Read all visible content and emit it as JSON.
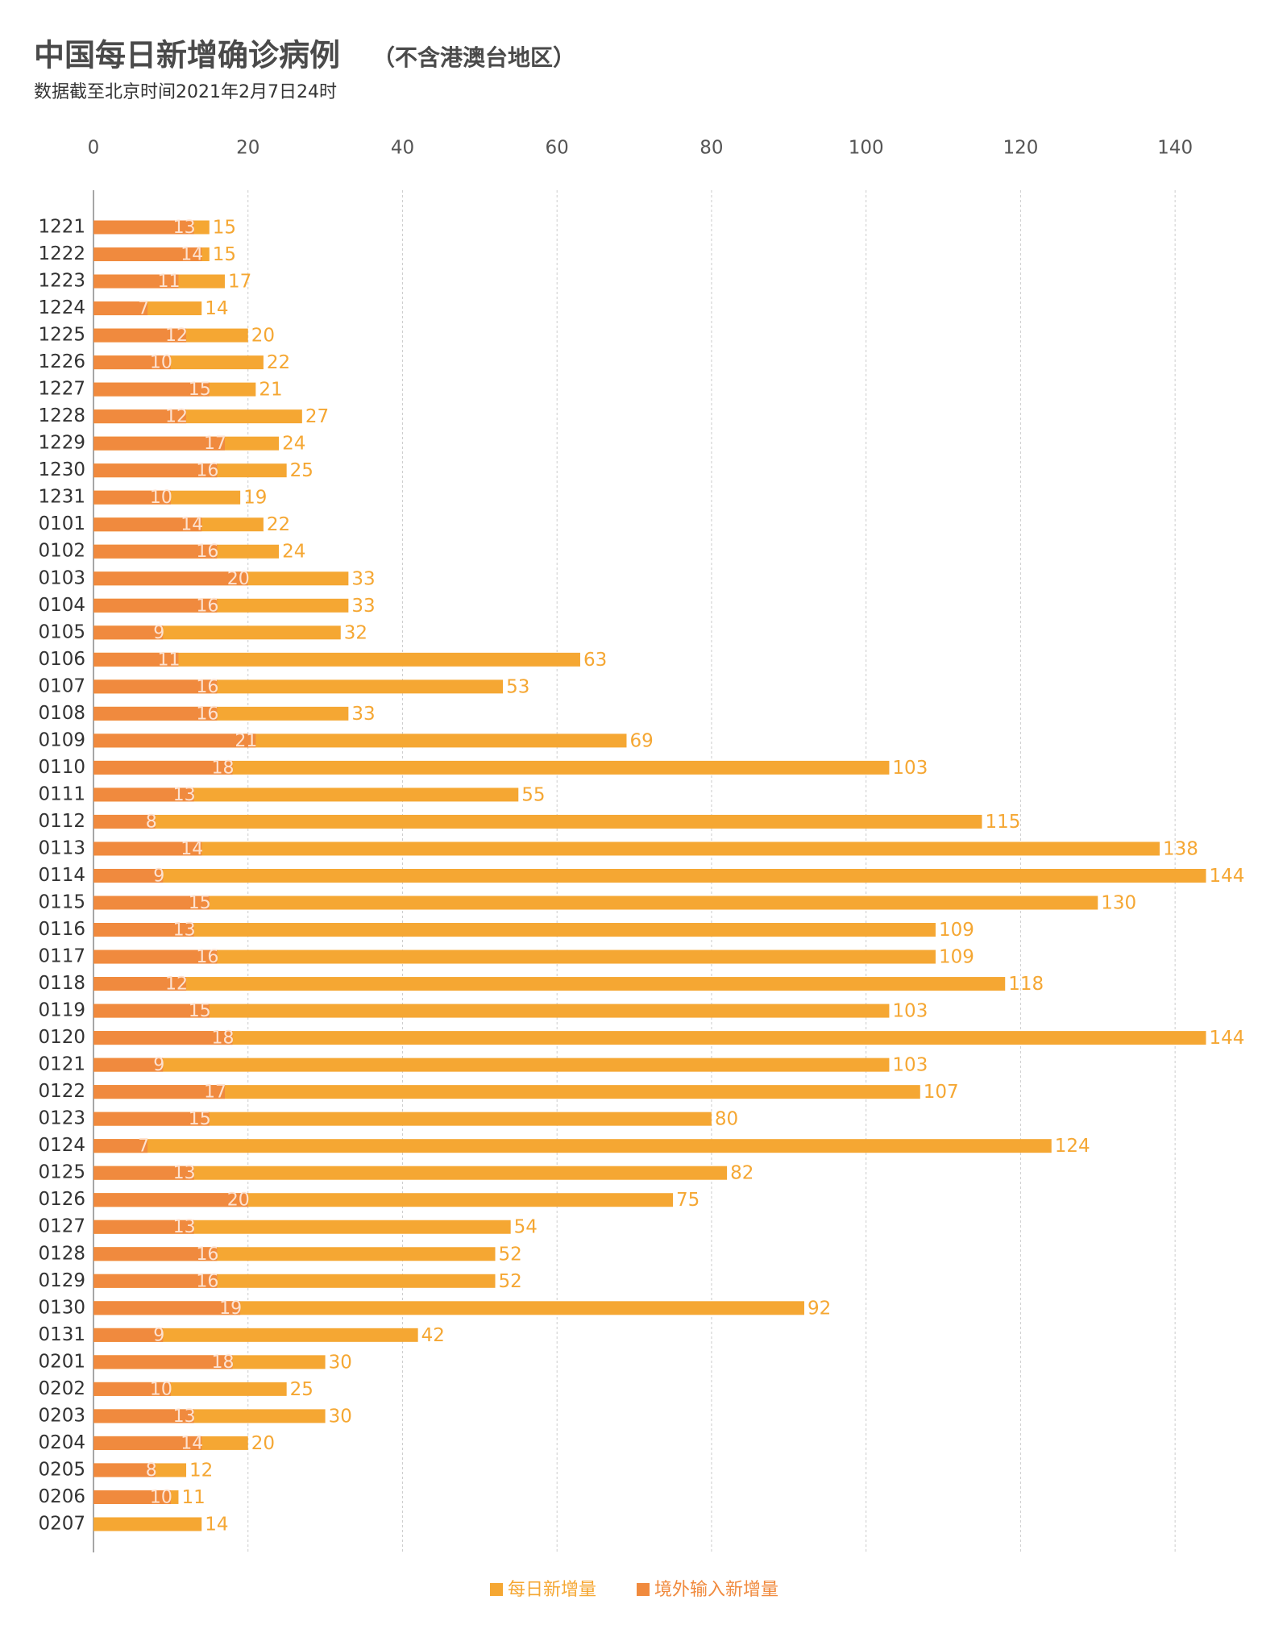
{
  "chart_data": {
    "type": "bar",
    "orientation": "horizontal",
    "overlap": true,
    "title": "中国每日新增确诊病例",
    "title_note": "（不含港澳台地区）",
    "subtitle": "数据截至北京时间2021年2月7日24时",
    "categories": [
      "1221",
      "1222",
      "1223",
      "1224",
      "1225",
      "1226",
      "1227",
      "1228",
      "1229",
      "1230",
      "1231",
      "0101",
      "0102",
      "0103",
      "0104",
      "0105",
      "0106",
      "0107",
      "0108",
      "0109",
      "0110",
      "0111",
      "0112",
      "0113",
      "0114",
      "0115",
      "0116",
      "0117",
      "0118",
      "0119",
      "0120",
      "0121",
      "0122",
      "0123",
      "0124",
      "0125",
      "0126",
      "0127",
      "0128",
      "0129",
      "0130",
      "0131",
      "0201",
      "0202",
      "0203",
      "0204",
      "0205",
      "0206",
      "0207"
    ],
    "series": [
      {
        "name": "每日新增量",
        "color": "#f5a733",
        "values": [
          15,
          15,
          17,
          14,
          20,
          22,
          21,
          27,
          24,
          25,
          19,
          22,
          24,
          33,
          33,
          32,
          63,
          53,
          33,
          69,
          103,
          55,
          115,
          138,
          144,
          130,
          109,
          109,
          118,
          103,
          144,
          103,
          107,
          80,
          124,
          82,
          75,
          54,
          52,
          52,
          92,
          42,
          30,
          25,
          30,
          20,
          12,
          11,
          14
        ]
      },
      {
        "name": "境外输入新增量",
        "color": "#f08a3e",
        "values": [
          13,
          14,
          11,
          7,
          12,
          10,
          15,
          12,
          17,
          16,
          10,
          14,
          16,
          20,
          16,
          9,
          11,
          16,
          16,
          21,
          18,
          13,
          8,
          14,
          9,
          15,
          13,
          16,
          12,
          15,
          18,
          9,
          17,
          15,
          7,
          13,
          20,
          13,
          16,
          16,
          19,
          9,
          18,
          10,
          13,
          14,
          8,
          10,
          null
        ]
      }
    ],
    "xlim": [
      0,
      150
    ],
    "xticks": [
      0,
      20,
      40,
      60,
      80,
      100,
      120,
      140
    ],
    "grid": true
  }
}
